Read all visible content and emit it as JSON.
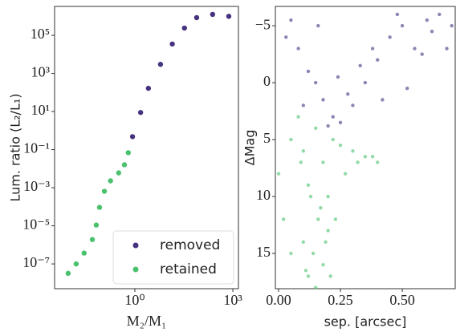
{
  "chart_data": [
    {
      "type": "scatter",
      "xlabel": "M₂/M₁",
      "ylabel": "Lum. ratio (L₂/L₁)",
      "log_x": true,
      "log_y": true,
      "xlim": [
        0.0035,
        1480
      ],
      "ylim": [
        5e-09,
        3300000
      ],
      "xticks": [
        {
          "value": 1,
          "label": "10⁰"
        },
        {
          "value": 1000,
          "label": "10³"
        }
      ],
      "yticks": [
        {
          "value": 1e-07,
          "label": "10⁻⁷"
        },
        {
          "value": 1e-05,
          "label": "10⁻⁵"
        },
        {
          "value": 0.001,
          "label": "10⁻³"
        },
        {
          "value": 0.1,
          "label": "10⁻¹"
        },
        {
          "value": 10,
          "label": "10¹"
        },
        {
          "value": 1000,
          "label": "10³"
        },
        {
          "value": 100000,
          "label": "10⁵"
        }
      ],
      "legend": "lower right",
      "series": [
        {
          "name": "removed",
          "color": "#46327e",
          "x": [
            0.85,
            1.5,
            2.6,
            6.1,
            14,
            33,
            78,
            240,
            750
          ],
          "y": [
            0.48,
            8.9,
            166,
            3000,
            35000,
            240000,
            850000,
            1260000,
            1000000
          ]
        },
        {
          "name": "retained",
          "color": "#4ac16d",
          "x": [
            0.0091,
            0.016,
            0.028,
            0.05,
            0.066,
            0.083,
            0.117,
            0.18,
            0.32,
            0.48,
            0.63
          ],
          "y": [
            3.2e-08,
            1e-07,
            3.7e-07,
            1.9e-06,
            1.1e-05,
            9.3e-05,
            0.00065,
            0.0023,
            0.006,
            0.016,
            0.069
          ]
        }
      ]
    },
    {
      "type": "scatter",
      "xlabel": "sep. [arcsec]",
      "ylabel": "ΔMag",
      "log_x": false,
      "log_y": false,
      "xlim": [
        -0.013,
        0.714
      ],
      "ylim": [
        18.1,
        -6.7
      ],
      "xticks": [
        {
          "value": 0,
          "label": "0.00"
        },
        {
          "value": 0.25,
          "label": "0.25"
        },
        {
          "value": 0.5,
          "label": "0.50"
        }
      ],
      "yticks": [
        {
          "value": -5,
          "label": "−5"
        },
        0,
        5,
        10,
        15
      ],
      "series": [
        {
          "color": "#46327e",
          "x": [
            0.05,
            0.08,
            0.12,
            0.15,
            0.18,
            0.22,
            0.25,
            0.3,
            0.35,
            0.4,
            0.45,
            0.5,
            0.55,
            0.6,
            0.65,
            0.7,
            0.1,
            0.2,
            0.28,
            0.33,
            0.38,
            0.42,
            0.48,
            0.58,
            0.62,
            0.16,
            0.24,
            0.03,
            0.68,
            0.52
          ],
          "y": [
            -5.5,
            -3,
            -1,
            0,
            1.5,
            3,
            3.5,
            2,
            0,
            -2,
            -4,
            -5,
            -3,
            -5.5,
            -6,
            -5,
            2,
            3.8,
            1,
            -1.5,
            -3,
            1.5,
            -6,
            -2.5,
            -4.5,
            -5,
            -0.5,
            -4,
            -3,
            0.5
          ]
        },
        {
          "color": "#4ac16d",
          "x": [
            0.0,
            0.02,
            0.05,
            0.08,
            0.1,
            0.12,
            0.15,
            0.18,
            0.2,
            0.22,
            0.25,
            0.27,
            0.3,
            0.32,
            0.35,
            0.05,
            0.1,
            0.12,
            0.15,
            0.18,
            0.2,
            0.14,
            0.16,
            0.13,
            0.17,
            0.11,
            0.19,
            0.09,
            0.21,
            0.23,
            0.38,
            0.4
          ],
          "y": [
            8,
            12,
            5,
            3,
            6,
            9,
            4,
            7,
            10,
            5,
            5.5,
            8,
            6,
            7,
            6.5,
            15,
            14,
            17,
            18,
            16,
            13,
            15,
            12,
            10,
            11,
            16.5,
            14,
            7,
            17,
            12,
            6.5,
            7
          ]
        }
      ]
    }
  ]
}
